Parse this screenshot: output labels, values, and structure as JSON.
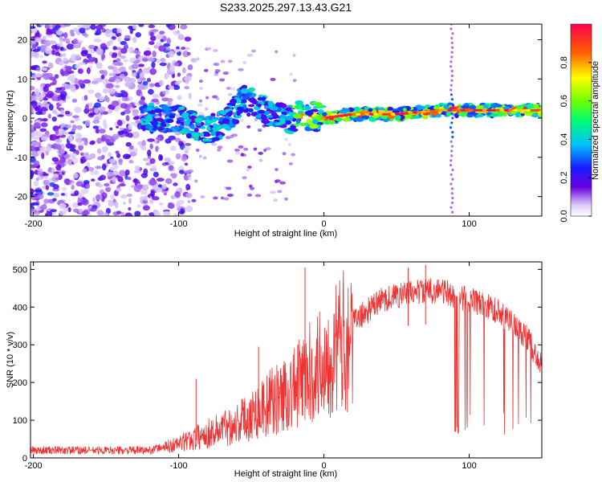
{
  "title": "S233.2025.297.13.43.G21",
  "chart_data": [
    {
      "type": "heatmap",
      "xlabel": "Height of straight line (km)",
      "ylabel": "Frequency (Hz)",
      "xlim": [
        -202,
        150
      ],
      "ylim": [
        -25,
        24
      ],
      "xticks": [
        -200,
        -100,
        0,
        100
      ],
      "yticks": [
        -20,
        -10,
        0,
        10,
        20
      ],
      "colorbar": {
        "label": "Normalized spectral amplitude",
        "range": [
          0,
          1
        ],
        "ticks": [
          "0.0",
          "0.2",
          "0.4",
          "0.6",
          "0.8"
        ]
      },
      "ridge": [
        {
          "x": -120,
          "y": 0
        },
        {
          "x": -100,
          "y": 0
        },
        {
          "x": -85,
          "y": -3
        },
        {
          "x": -70,
          "y": -2
        },
        {
          "x": -55,
          "y": 5
        },
        {
          "x": -40,
          "y": 2
        },
        {
          "x": -25,
          "y": -1
        },
        {
          "x": -15,
          "y": 1
        },
        {
          "x": 0,
          "y": 0
        },
        {
          "x": 20,
          "y": 1
        },
        {
          "x": 50,
          "y": 1
        },
        {
          "x": 80,
          "y": 2
        },
        {
          "x": 100,
          "y": 2
        },
        {
          "x": 150,
          "y": 2
        }
      ]
    },
    {
      "type": "line",
      "xlabel": "Height of straight line (km)",
      "ylabel": "SNR (10 * v/v)",
      "xlim": [
        -202,
        150
      ],
      "ylim": [
        0,
        520
      ],
      "xticks": [
        -200,
        -100,
        0,
        100
      ],
      "yticks": [
        0,
        100,
        200,
        300,
        400,
        500
      ],
      "series": [
        {
          "name": "SNR",
          "color": "#ee3333",
          "envelope": [
            {
              "x": -202,
              "y": 20
            },
            {
              "x": -120,
              "y": 20
            },
            {
              "x": -100,
              "y": 40
            },
            {
              "x": -80,
              "y": 70
            },
            {
              "x": -60,
              "y": 100
            },
            {
              "x": -40,
              "y": 150
            },
            {
              "x": -20,
              "y": 200
            },
            {
              "x": 0,
              "y": 280
            },
            {
              "x": 20,
              "y": 360
            },
            {
              "x": 40,
              "y": 420
            },
            {
              "x": 60,
              "y": 440
            },
            {
              "x": 80,
              "y": 445
            },
            {
              "x": 90,
              "y": 430
            },
            {
              "x": 100,
              "y": 420
            },
            {
              "x": 120,
              "y": 390
            },
            {
              "x": 140,
              "y": 320
            },
            {
              "x": 150,
              "y": 240
            }
          ],
          "spikes": [
            {
              "x": -13,
              "y": 505
            },
            {
              "x": 58,
              "y": 505
            },
            {
              "x": 70,
              "y": 512
            },
            {
              "x": -45,
              "y": 295
            },
            {
              "x": -88,
              "y": 210
            }
          ],
          "dropouts": [
            {
              "x_start": 90,
              "x_end": 93,
              "y": 65
            }
          ]
        }
      ]
    }
  ]
}
